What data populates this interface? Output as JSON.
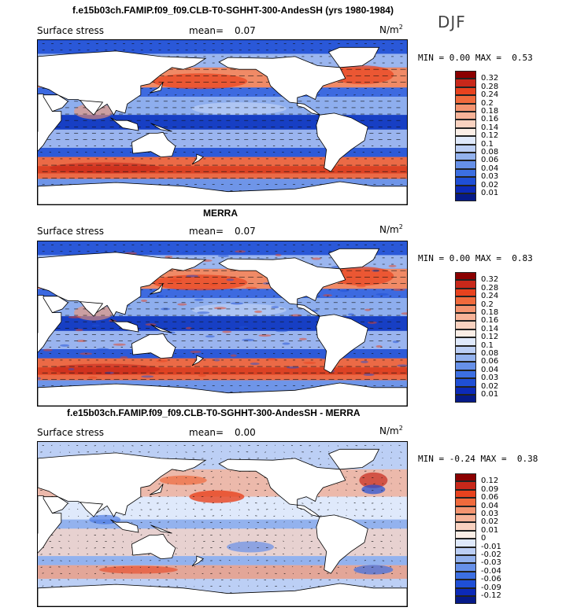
{
  "season": "DJF",
  "panels": [
    {
      "title": "f.e15b03ch.FAMIP.f09_f09.CLB-T0-SGHHT-300-AndesSH (yrs 1980-1984)",
      "variable": "Surface stress",
      "mean_label": "mean=",
      "mean_value": "0.07",
      "units": "N/m",
      "units_exp": "2",
      "min_label": "MIN =",
      "min_value": "0.00",
      "max_label": "MAX =",
      "max_value": "0.53",
      "levels": [
        "0.32",
        "0.28",
        "0.24",
        "0.2",
        "0.18",
        "0.16",
        "0.14",
        "0.12",
        "0.1",
        "0.08",
        "0.06",
        "0.04",
        "0.03",
        "0.02",
        "0.01"
      ],
      "colors": [
        "#8b0000",
        "#c8281a",
        "#e8421e",
        "#f06a3c",
        "#f49470",
        "#f7b398",
        "#f9d2c0",
        "#fbeee6",
        "#dfe9fb",
        "#bccff5",
        "#93b2ee",
        "#6690e8",
        "#3c6fe2",
        "#1f4fd6",
        "#0c2ab8",
        "#061a88"
      ]
    },
    {
      "title": "MERRA",
      "variable": "Surface stress",
      "mean_label": "mean=",
      "mean_value": "0.07",
      "units": "N/m",
      "units_exp": "2",
      "min_label": "MIN =",
      "min_value": "0.00",
      "max_label": "MAX =",
      "max_value": "0.83",
      "levels": [
        "0.32",
        "0.28",
        "0.24",
        "0.2",
        "0.18",
        "0.16",
        "0.14",
        "0.12",
        "0.1",
        "0.08",
        "0.06",
        "0.04",
        "0.03",
        "0.02",
        "0.01"
      ],
      "colors": [
        "#8b0000",
        "#c8281a",
        "#e8421e",
        "#f06a3c",
        "#f49470",
        "#f7b398",
        "#f9d2c0",
        "#fbeee6",
        "#dfe9fb",
        "#bccff5",
        "#93b2ee",
        "#6690e8",
        "#3c6fe2",
        "#1f4fd6",
        "#0c2ab8",
        "#061a88"
      ]
    },
    {
      "title": "f.e15b03ch.FAMIP.f09_f09.CLB-T0-SGHHT-300-AndesSH - MERRA",
      "variable": "Surface stress",
      "mean_label": "mean=",
      "mean_value": "0.00",
      "units": "N/m",
      "units_exp": "2",
      "min_label": "MIN =",
      "min_value": "-0.24",
      "max_label": "MAX =",
      "max_value": "0.38",
      "levels": [
        "0.12",
        "0.09",
        "0.06",
        "0.04",
        "0.03",
        "0.02",
        "0.01",
        "0",
        "-0.01",
        "-0.02",
        "-0.03",
        "-0.04",
        "-0.06",
        "-0.09",
        "-0.12"
      ],
      "colors": [
        "#8b0000",
        "#c8281a",
        "#e8421e",
        "#f06a3c",
        "#f49470",
        "#f7b398",
        "#f9d2c0",
        "#fbeee6",
        "#dfe9fb",
        "#bccff5",
        "#93b2ee",
        "#6690e8",
        "#3c6fe2",
        "#1f4fd6",
        "#0c2ab8",
        "#061a88"
      ]
    }
  ]
}
